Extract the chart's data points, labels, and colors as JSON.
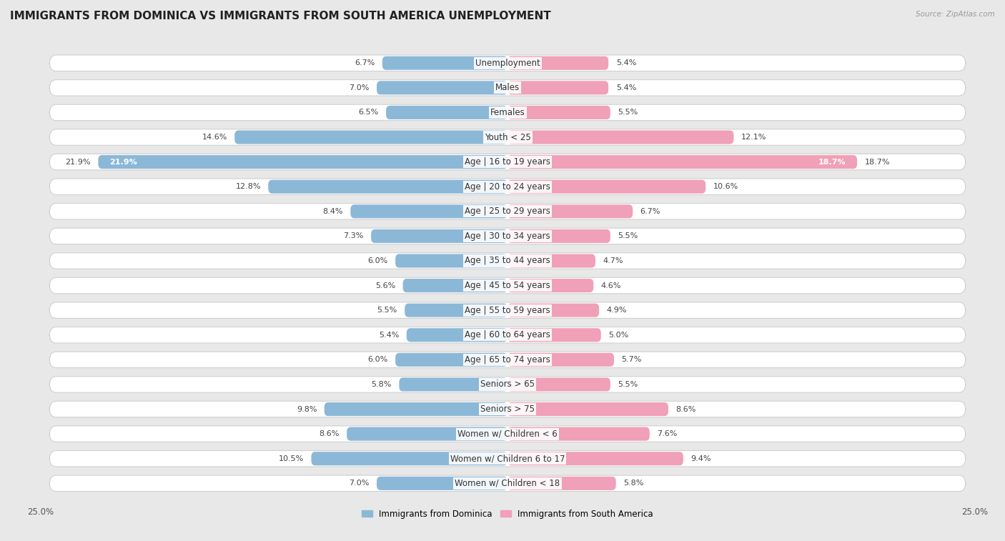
{
  "title": "IMMIGRANTS FROM DOMINICA VS IMMIGRANTS FROM SOUTH AMERICA UNEMPLOYMENT",
  "source": "Source: ZipAtlas.com",
  "categories": [
    "Unemployment",
    "Males",
    "Females",
    "Youth < 25",
    "Age | 16 to 19 years",
    "Age | 20 to 24 years",
    "Age | 25 to 29 years",
    "Age | 30 to 34 years",
    "Age | 35 to 44 years",
    "Age | 45 to 54 years",
    "Age | 55 to 59 years",
    "Age | 60 to 64 years",
    "Age | 65 to 74 years",
    "Seniors > 65",
    "Seniors > 75",
    "Women w/ Children < 6",
    "Women w/ Children 6 to 17",
    "Women w/ Children < 18"
  ],
  "dominica_values": [
    6.7,
    7.0,
    6.5,
    14.6,
    21.9,
    12.8,
    8.4,
    7.3,
    6.0,
    5.6,
    5.5,
    5.4,
    6.0,
    5.8,
    9.8,
    8.6,
    10.5,
    7.0
  ],
  "south_america_values": [
    5.4,
    5.4,
    5.5,
    12.1,
    18.7,
    10.6,
    6.7,
    5.5,
    4.7,
    4.6,
    4.9,
    5.0,
    5.7,
    5.5,
    8.6,
    7.6,
    9.4,
    5.8
  ],
  "dominica_color": "#8cb8d8",
  "south_america_color": "#f0a0b8",
  "dominica_label": "Immigrants from Dominica",
  "south_america_label": "Immigrants from South America",
  "background_color": "#e8e8e8",
  "row_bg_color": "#f5f5f5",
  "row_border_color": "#d0d0d0",
  "title_fontsize": 11,
  "label_fontsize": 8.5,
  "value_fontsize": 8.0,
  "legend_fontsize": 8.5,
  "axis_label_fontsize": 8.5
}
